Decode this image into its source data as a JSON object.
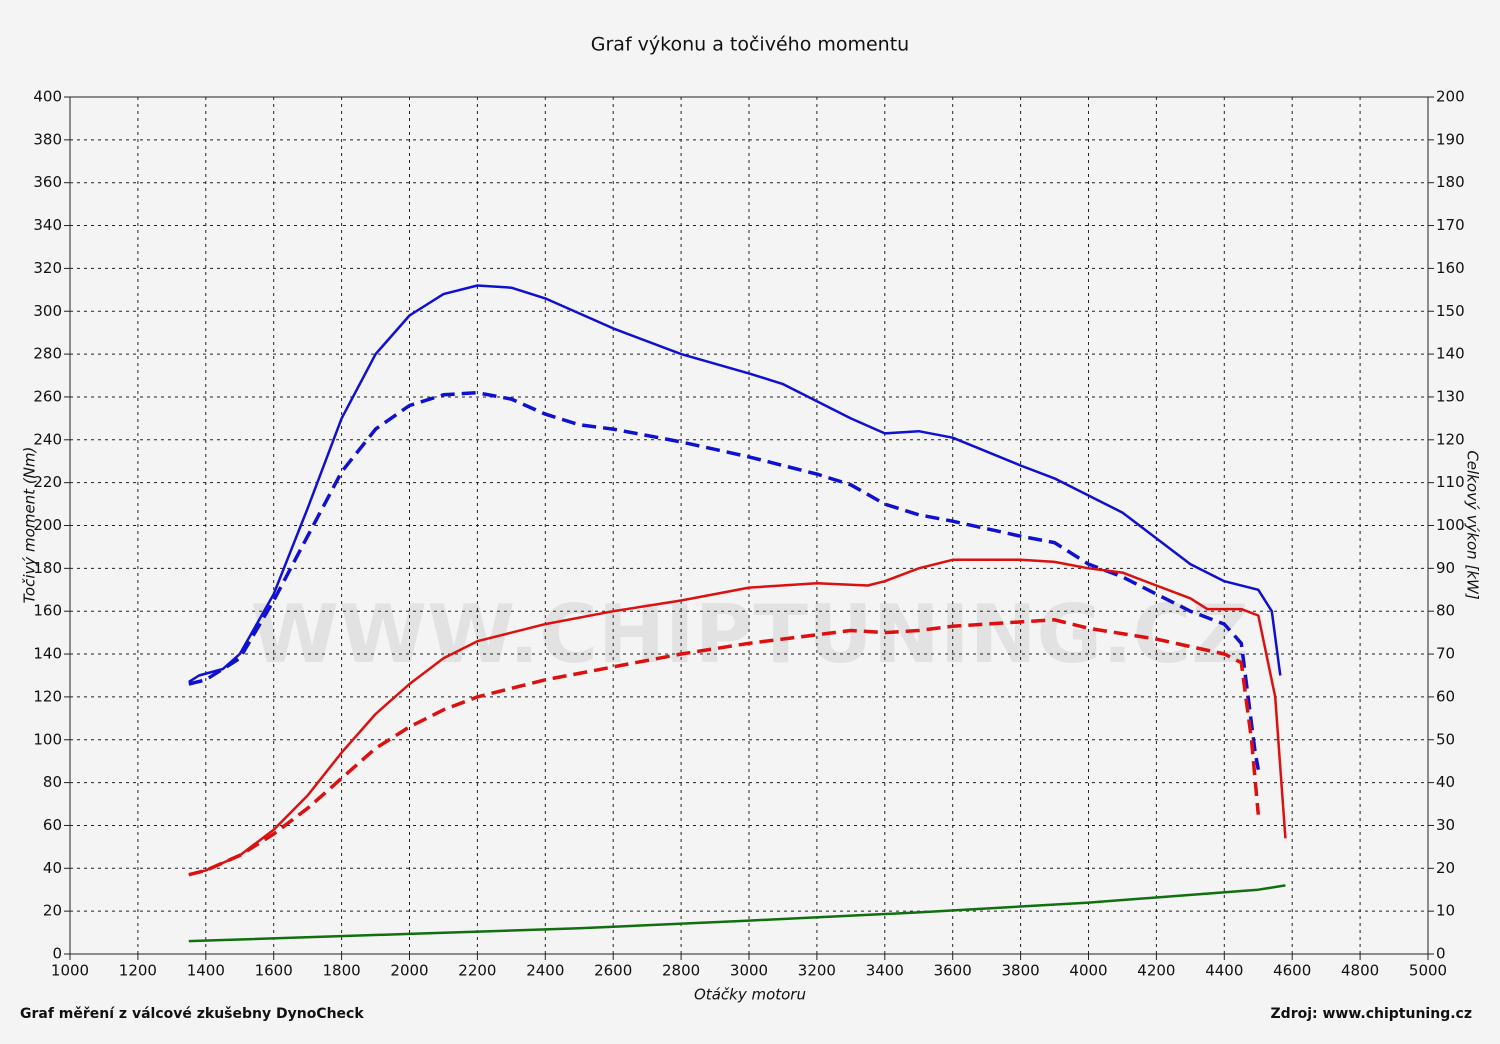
{
  "chart_data": {
    "type": "line",
    "title": "Graf výkonu a točivého momentu",
    "xlabel": "Otáčky motoru",
    "ylabel": "Točivý moment (Nm)",
    "y2label": "Celkový výkon [kW]",
    "footer_left": "Graf měření z válcové zkušebny DynoCheck",
    "footer_right": "Zdroj: www.chiptuning.cz",
    "watermark": "WWW.CHIPTUNING.CZ",
    "grid": true,
    "xlim": [
      1000,
      5000
    ],
    "xticks": [
      1000,
      1200,
      1400,
      1600,
      1800,
      2000,
      2200,
      2400,
      2600,
      2800,
      3000,
      3200,
      3400,
      3600,
      3800,
      4000,
      4200,
      4400,
      4600,
      4800,
      5000
    ],
    "ylim": [
      0,
      400
    ],
    "yticks": [
      0,
      20,
      40,
      60,
      80,
      100,
      120,
      140,
      160,
      180,
      200,
      220,
      240,
      260,
      280,
      300,
      320,
      340,
      360,
      380,
      400
    ],
    "y2lim": [
      0,
      200
    ],
    "y2ticks": [
      0,
      10,
      20,
      30,
      40,
      50,
      60,
      70,
      80,
      90,
      100,
      110,
      120,
      130,
      140,
      150,
      160,
      170,
      180,
      190,
      200
    ],
    "series": [
      {
        "color": "#1010d0",
        "dashed": false,
        "axis": "y",
        "x": [
          1350,
          1380,
          1450,
          1500,
          1600,
          1700,
          1800,
          1900,
          2000,
          2100,
          2200,
          2300,
          2400,
          2600,
          2800,
          3000,
          3100,
          3200,
          3300,
          3400,
          3500,
          3600,
          3800,
          3900,
          4000,
          4100,
          4200,
          4300,
          4400,
          4500,
          4540,
          4565
        ],
        "values": [
          127,
          130,
          133,
          140,
          168,
          208,
          250,
          280,
          298,
          308,
          312,
          311,
          306,
          292,
          280,
          271,
          266,
          258,
          250,
          243,
          244,
          241,
          228,
          222,
          214,
          206,
          194,
          182,
          174,
          170,
          160,
          130
        ]
      },
      {
        "color": "#1010d0",
        "dashed": true,
        "axis": "y",
        "x": [
          1350,
          1400,
          1500,
          1600,
          1700,
          1800,
          1900,
          2000,
          2100,
          2200,
          2300,
          2400,
          2500,
          2600,
          2800,
          3000,
          3200,
          3300,
          3400,
          3500,
          3600,
          3800,
          3900,
          4000,
          4100,
          4200,
          4300,
          4400,
          4450,
          4470,
          4490,
          4500
        ],
        "values": [
          126,
          128,
          138,
          165,
          195,
          225,
          245,
          256,
          261,
          262,
          259,
          252,
          247,
          245,
          239,
          232,
          224,
          219,
          210,
          205,
          202,
          195,
          192,
          182,
          176,
          168,
          160,
          154,
          145,
          120,
          95,
          86
        ]
      },
      {
        "color": "#dd1010",
        "dashed": false,
        "axis": "y2",
        "x": [
          1350,
          1400,
          1500,
          1600,
          1700,
          1800,
          1900,
          2000,
          2100,
          2200,
          2400,
          2600,
          2800,
          3000,
          3200,
          3350,
          3400,
          3500,
          3600,
          3800,
          3900,
          4000,
          4100,
          4200,
          4300,
          4350,
          4450,
          4500,
          4550,
          4580
        ],
        "values": [
          18.5,
          19.5,
          23,
          29,
          37,
          47,
          56,
          63,
          69,
          73,
          77,
          80,
          82.5,
          85.5,
          86.5,
          86,
          87,
          90,
          92,
          92,
          91.5,
          90,
          89,
          86,
          83,
          80.5,
          80.5,
          79,
          60,
          27
        ]
      },
      {
        "color": "#dd1010",
        "dashed": true,
        "axis": "y2",
        "x": [
          1350,
          1400,
          1500,
          1600,
          1700,
          1800,
          1900,
          2000,
          2100,
          2200,
          2400,
          2600,
          2800,
          3000,
          3200,
          3300,
          3400,
          3500,
          3600,
          3800,
          3900,
          4000,
          4200,
          4400,
          4450,
          4480,
          4500
        ],
        "values": [
          18.5,
          19.5,
          23,
          28,
          34,
          41,
          48,
          53,
          57,
          60,
          64,
          67,
          70,
          72.5,
          74.5,
          75.5,
          75,
          75.5,
          76.5,
          77.5,
          78,
          76,
          73.5,
          70,
          68,
          50,
          32.5
        ]
      },
      {
        "color": "#107010",
        "dashed": false,
        "axis": "y2",
        "x": [
          1350,
          2000,
          2500,
          3000,
          3500,
          4000,
          4500,
          4580
        ],
        "values": [
          3,
          4.7,
          6,
          7.8,
          9.7,
          12,
          15,
          16
        ]
      }
    ]
  }
}
